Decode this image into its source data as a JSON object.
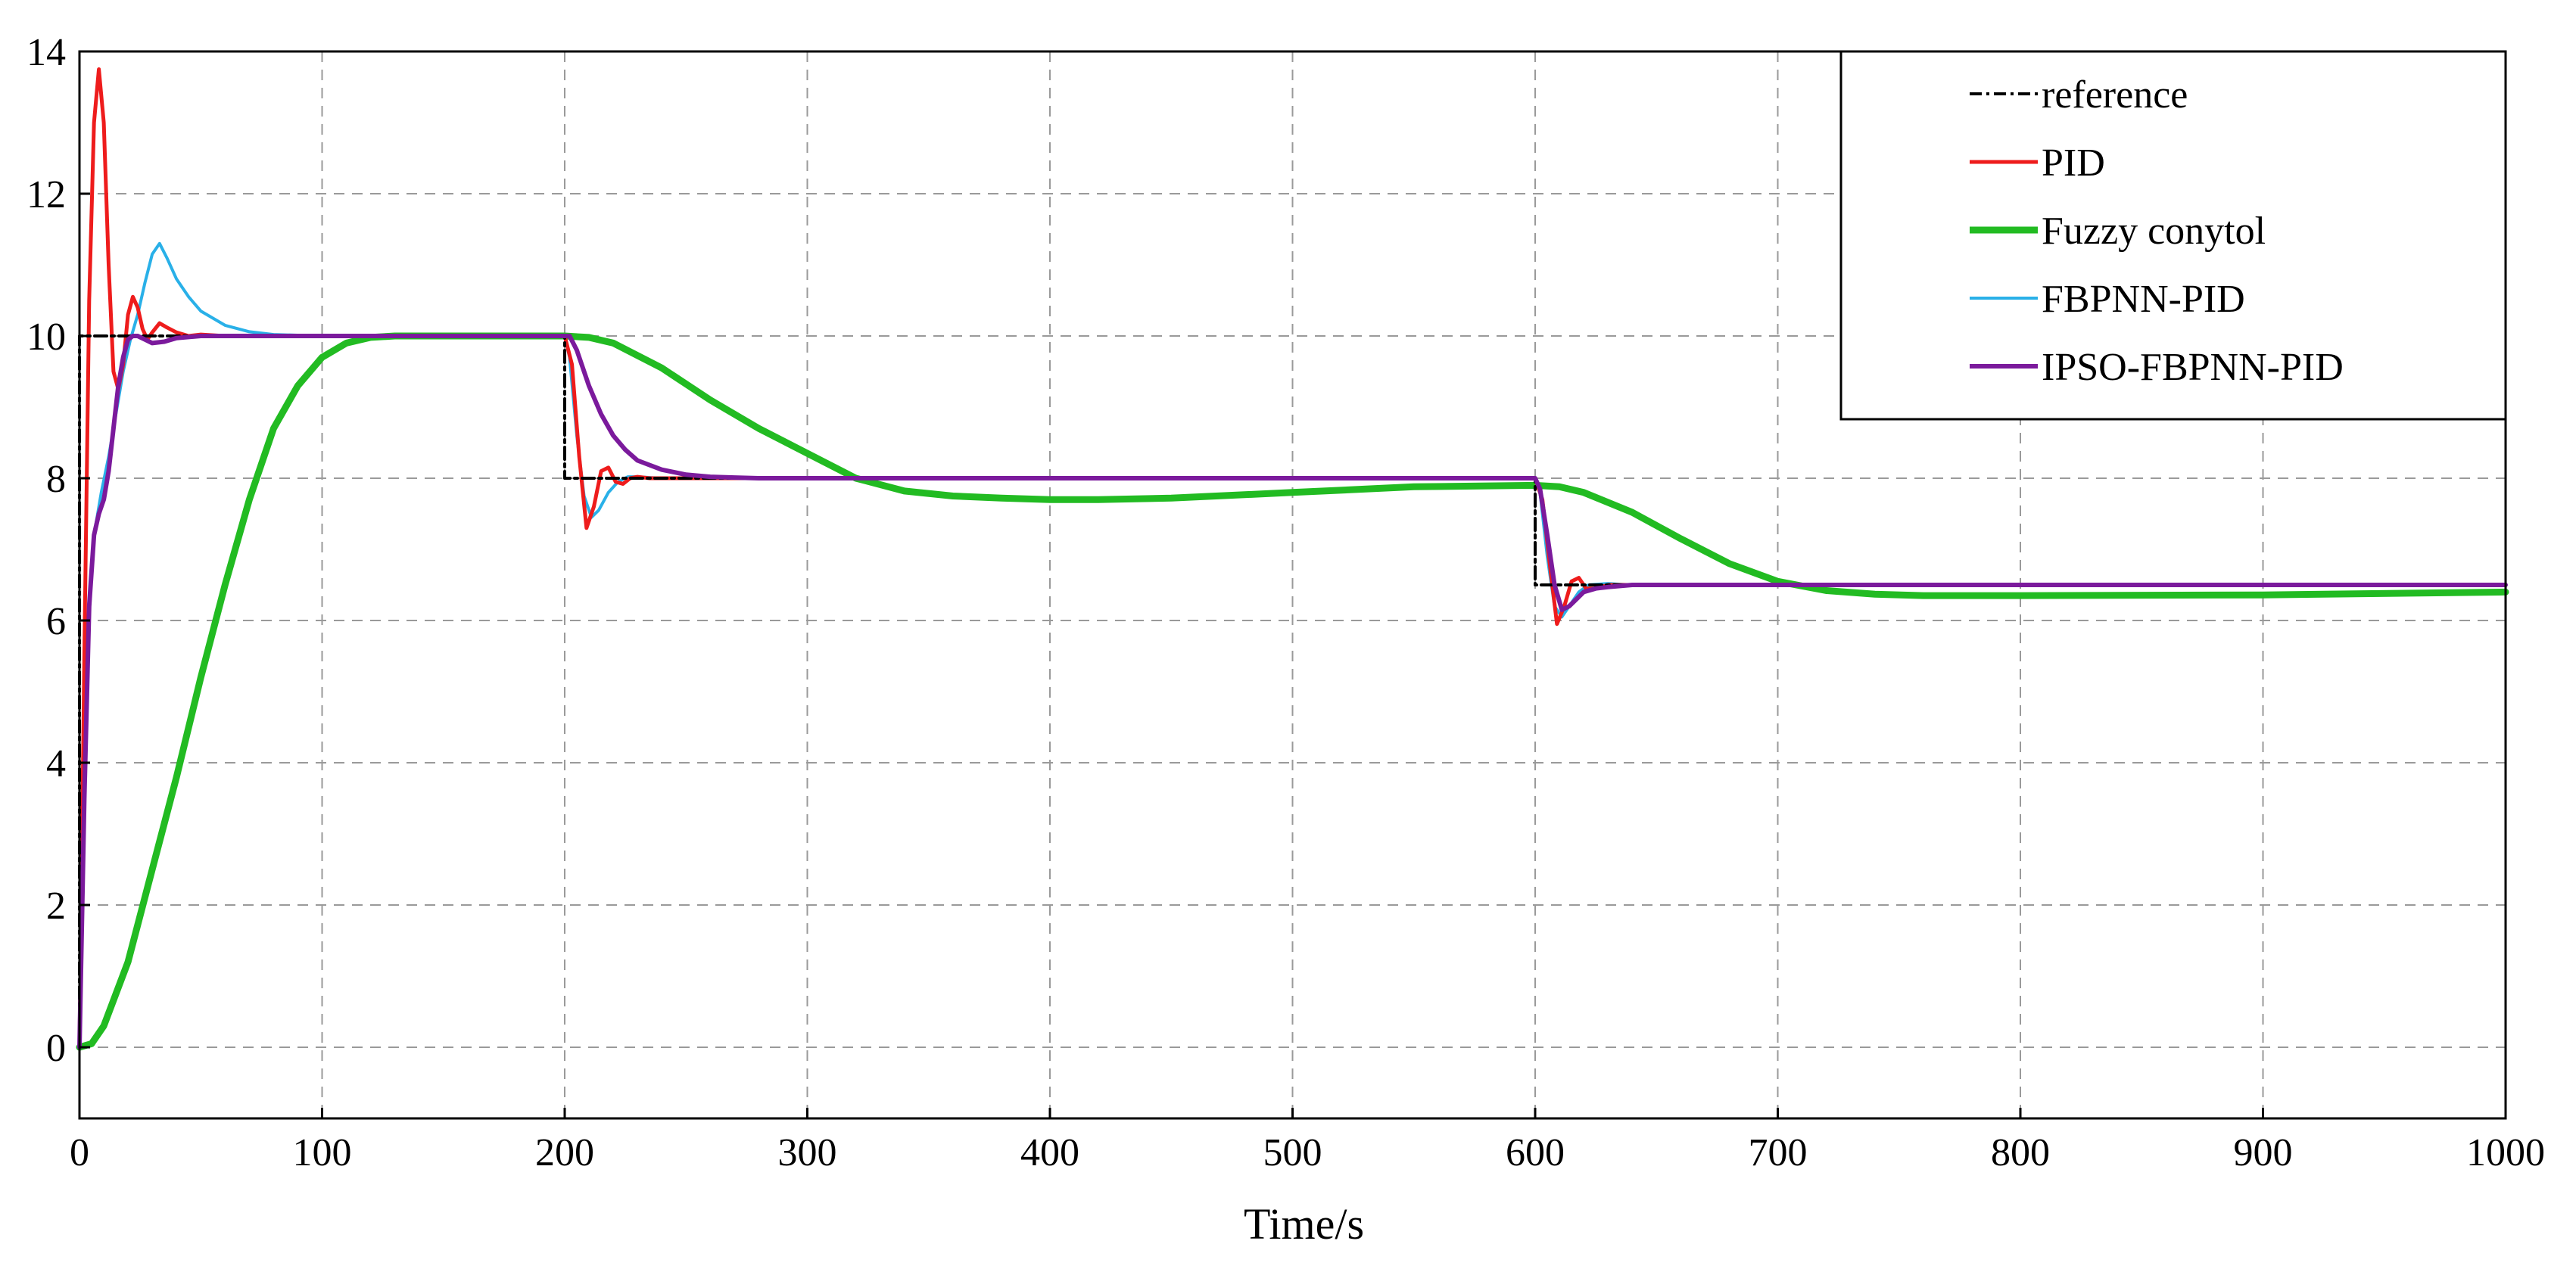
{
  "chart_data": {
    "type": "line",
    "title": "",
    "xlabel": "Time/s",
    "ylabel": "",
    "xlim": [
      0,
      1000
    ],
    "ylim": [
      -1,
      14
    ],
    "xticks": [
      0,
      100,
      200,
      300,
      400,
      500,
      600,
      700,
      800,
      900,
      1000
    ],
    "yticks": [
      0,
      2,
      4,
      6,
      8,
      10,
      12,
      14
    ],
    "xtick_labels": [
      "0",
      "100",
      "200",
      "300",
      "400",
      "500",
      "600",
      "700",
      "800",
      "900",
      "1000"
    ],
    "ytick_labels": [
      "0",
      "2",
      "4",
      "6",
      "8",
      "10",
      "12",
      "14"
    ],
    "grid": true,
    "legend_position": "top-right",
    "series": [
      {
        "name": "reference",
        "color": "#000000",
        "dash": "dash-dot",
        "x": [
          0,
          0.01,
          200,
          200.01,
          600,
          600.01,
          1000
        ],
        "y": [
          0,
          10,
          10,
          8,
          8,
          6.5,
          6.5
        ]
      },
      {
        "name": "PID",
        "color": "#ee1c1c",
        "x": [
          0,
          2,
          4,
          6,
          8,
          10,
          12,
          14,
          16,
          18,
          20,
          22,
          24,
          26,
          28,
          30,
          33,
          36,
          40,
          45,
          50,
          60,
          80,
          200,
          203,
          206,
          209,
          212,
          215,
          218,
          221,
          224,
          227,
          230,
          235,
          240,
          250,
          280,
          600,
          603,
          606,
          609,
          612,
          615,
          618,
          621,
          625,
          630,
          640,
          660,
          1000
        ],
        "y": [
          0,
          5.5,
          10.5,
          13.0,
          13.75,
          13.0,
          11.0,
          9.5,
          9.25,
          9.6,
          10.3,
          10.55,
          10.4,
          10.1,
          9.95,
          10.05,
          10.18,
          10.12,
          10.05,
          10.0,
          10.02,
          10.0,
          10.0,
          10.0,
          9.6,
          8.3,
          7.3,
          7.6,
          8.1,
          8.15,
          7.95,
          7.92,
          8.0,
          8.02,
          8.0,
          8.0,
          8.0,
          8.0,
          8.0,
          7.7,
          6.8,
          5.95,
          6.2,
          6.55,
          6.6,
          6.45,
          6.45,
          6.5,
          6.5,
          6.5,
          6.5
        ]
      },
      {
        "name": "Fuzzy conytol",
        "color": "#22bb22",
        "x": [
          0,
          5,
          10,
          20,
          30,
          40,
          50,
          60,
          70,
          80,
          90,
          100,
          110,
          120,
          130,
          150,
          200,
          210,
          220,
          240,
          260,
          280,
          300,
          320,
          340,
          360,
          380,
          400,
          420,
          450,
          500,
          550,
          600,
          610,
          620,
          640,
          660,
          680,
          700,
          720,
          740,
          760,
          800,
          900,
          1000
        ],
        "y": [
          0,
          0.05,
          0.3,
          1.2,
          2.5,
          3.8,
          5.2,
          6.5,
          7.7,
          8.7,
          9.3,
          9.7,
          9.9,
          9.98,
          10.0,
          10.0,
          10.0,
          9.98,
          9.9,
          9.55,
          9.1,
          8.7,
          8.35,
          8.0,
          7.82,
          7.75,
          7.72,
          7.7,
          7.7,
          7.72,
          7.8,
          7.88,
          7.9,
          7.88,
          7.8,
          7.52,
          7.15,
          6.8,
          6.55,
          6.42,
          6.37,
          6.35,
          6.35,
          6.36,
          6.4
        ]
      },
      {
        "name": "FBPNN-PID",
        "color": "#29b0e8",
        "x": [
          0,
          3,
          6,
          9,
          12,
          15,
          18,
          21,
          24,
          27,
          30,
          33,
          36,
          40,
          45,
          50,
          60,
          70,
          80,
          100,
          200,
          202,
          205,
          208,
          211,
          214,
          218,
          222,
          226,
          230,
          240,
          260,
          600,
          602,
          605,
          608,
          611,
          614,
          618,
          622,
          630,
          640,
          1000
        ],
        "y": [
          0,
          5.5,
          7.2,
          7.8,
          8.3,
          8.9,
          9.5,
          9.95,
          10.3,
          10.75,
          11.15,
          11.3,
          11.1,
          10.8,
          10.55,
          10.35,
          10.15,
          10.06,
          10.02,
          10.0,
          10.0,
          9.7,
          8.6,
          7.75,
          7.45,
          7.55,
          7.8,
          7.95,
          8.02,
          8.02,
          8.0,
          8.0,
          8.0,
          7.8,
          6.9,
          6.2,
          6.05,
          6.2,
          6.4,
          6.5,
          6.52,
          6.5,
          6.5
        ]
      },
      {
        "name": "IPSO-FBPNN-PID",
        "color": "#7b1a9c",
        "x": [
          0,
          2,
          4,
          6,
          8,
          10,
          12,
          14,
          16,
          18,
          20,
          22,
          24,
          27,
          30,
          35,
          40,
          50,
          60,
          80,
          200,
          202,
          205,
          210,
          215,
          220,
          225,
          230,
          240,
          250,
          260,
          270,
          280,
          300,
          600,
          602,
          605,
          608,
          611,
          614,
          617,
          620,
          625,
          630,
          640,
          650,
          1000
        ],
        "y": [
          0,
          3.5,
          6.2,
          7.2,
          7.5,
          7.7,
          8.1,
          8.7,
          9.3,
          9.7,
          9.95,
          10.0,
          10.0,
          9.95,
          9.9,
          9.92,
          9.97,
          10.0,
          10.0,
          10.0,
          10.0,
          10.0,
          9.8,
          9.3,
          8.9,
          8.6,
          8.4,
          8.25,
          8.12,
          8.05,
          8.02,
          8.01,
          8.0,
          8.0,
          8.0,
          7.85,
          7.2,
          6.5,
          6.15,
          6.2,
          6.3,
          6.4,
          6.45,
          6.47,
          6.5,
          6.5,
          6.5
        ]
      }
    ]
  }
}
